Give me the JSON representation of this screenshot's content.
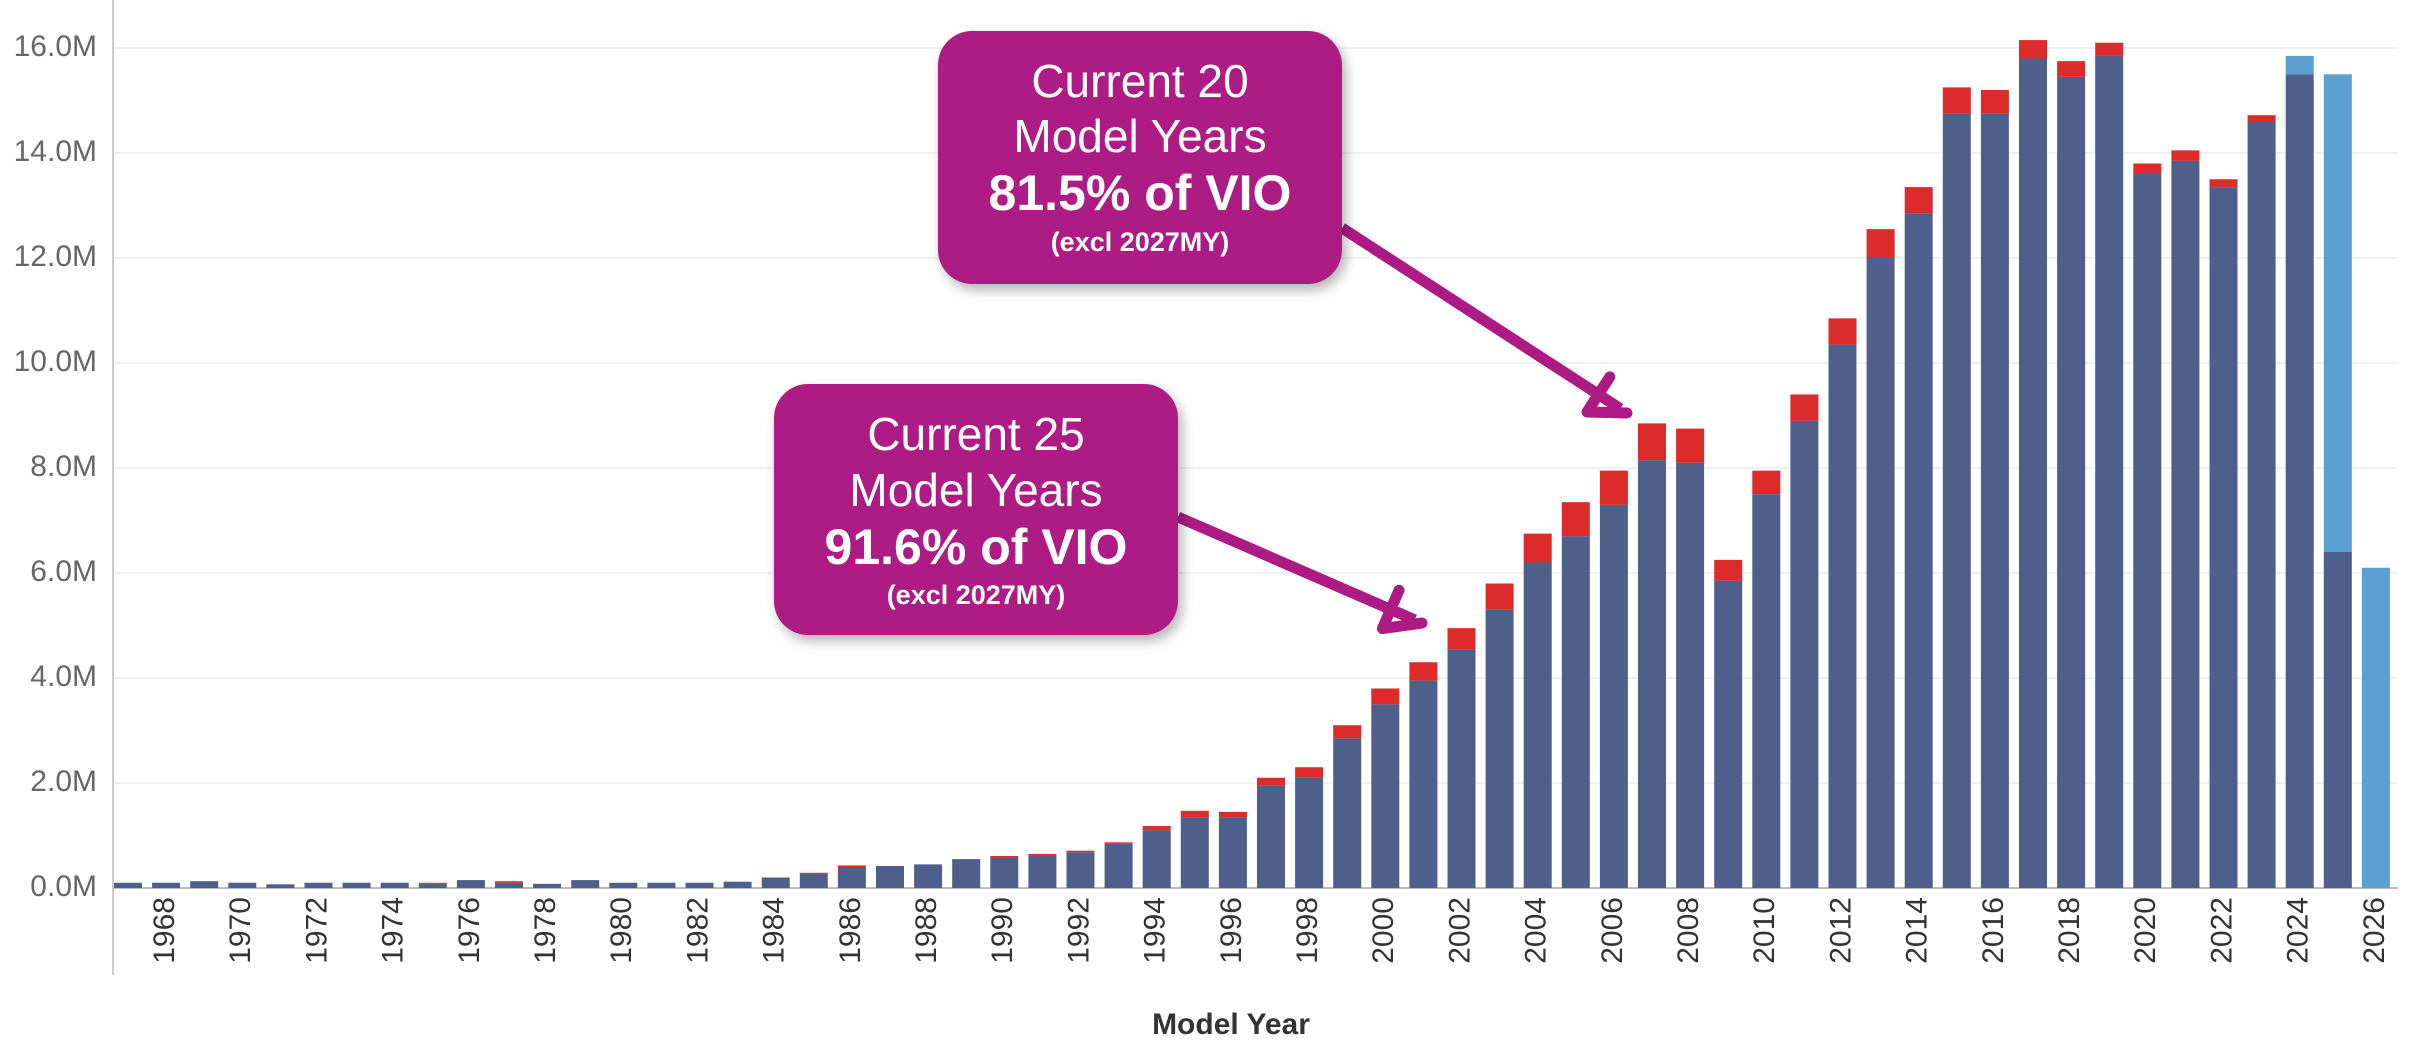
{
  "chart_data": {
    "type": "stacked_bar",
    "x_label": "Model Year",
    "categories": [
      null,
      "1968",
      null,
      "1970",
      null,
      "1972",
      null,
      "1974",
      null,
      "1976",
      null,
      "1978",
      null,
      "1980",
      null,
      "1982",
      null,
      "1984",
      null,
      "1986",
      null,
      "1988",
      null,
      "1990",
      null,
      "1992",
      null,
      "1994",
      null,
      "1996",
      null,
      "1998",
      null,
      "2000",
      null,
      "2002",
      null,
      "2004",
      null,
      "2006",
      null,
      "2008",
      null,
      "2010",
      null,
      "2012",
      null,
      "2014",
      null,
      "2016",
      null,
      "2018",
      null,
      "2020",
      null,
      "2022",
      null,
      "2024",
      null,
      "2026"
    ],
    "series": [
      {
        "color": "#4f5f8c",
        "values": [
          0.1,
          0.1,
          0.13,
          0.1,
          0.07,
          0.1,
          0.1,
          0.1,
          0.08,
          0.15,
          0.1,
          0.08,
          0.15,
          0.1,
          0.1,
          0.1,
          0.12,
          0.2,
          0.27,
          0.4,
          0.42,
          0.45,
          0.55,
          0.58,
          0.62,
          0.68,
          0.85,
          1.1,
          1.35,
          1.35,
          1.95,
          2.1,
          2.85,
          3.5,
          3.95,
          4.55,
          5.3,
          6.2,
          6.7,
          7.3,
          8.15,
          8.1,
          5.85,
          7.5,
          8.9,
          10.35,
          12.0,
          12.85,
          14.75,
          14.75,
          15.8,
          15.45,
          15.85,
          13.6,
          13.85,
          13.35,
          14.6,
          15.5,
          6.4,
          0
        ]
      },
      {
        "color": "#dd2a2a",
        "values": [
          0,
          0,
          0,
          0,
          0,
          0,
          0,
          0,
          0.02,
          0,
          0.03,
          0,
          0,
          0,
          0,
          0,
          0,
          0,
          0.02,
          0.03,
          0,
          0,
          0,
          0.03,
          0.03,
          0.03,
          0.02,
          0.08,
          0.12,
          0.1,
          0.15,
          0.2,
          0.25,
          0.3,
          0.35,
          0.4,
          0.5,
          0.55,
          0.65,
          0.65,
          0.7,
          0.65,
          0.4,
          0.45,
          0.5,
          0.5,
          0.55,
          0.5,
          0.5,
          0.45,
          0.35,
          0.3,
          0.25,
          0.2,
          0.2,
          0.15,
          0.12,
          0,
          0,
          0
        ]
      },
      {
        "color": "#5b9fd0",
        "values": [
          0,
          0,
          0,
          0,
          0,
          0,
          0,
          0,
          0,
          0,
          0,
          0,
          0,
          0,
          0,
          0,
          0,
          0,
          0,
          0,
          0,
          0,
          0,
          0,
          0,
          0,
          0,
          0,
          0,
          0,
          0,
          0,
          0,
          0,
          0,
          0,
          0,
          0,
          0,
          0,
          0,
          0,
          0,
          0,
          0,
          0,
          0,
          0,
          0,
          0,
          0,
          0,
          0,
          0,
          0,
          0,
          0,
          0.35,
          9.1,
          6.1
        ]
      }
    ],
    "ylim": [
      0,
      16.5
    ],
    "yticks": [
      {
        "value": 0,
        "label": "0.0M"
      },
      {
        "value": 2,
        "label": "2.0M"
      },
      {
        "value": 4,
        "label": "4.0M"
      },
      {
        "value": 6,
        "label": "6.0M"
      },
      {
        "value": 8,
        "label": "8.0M"
      },
      {
        "value": 10,
        "label": "10.0M"
      },
      {
        "value": 12,
        "label": "12.0M"
      },
      {
        "value": 14,
        "label": "14.0M"
      },
      {
        "value": 16,
        "label": "16.0M"
      }
    ],
    "grid": true,
    "annotations": [
      {
        "lines": [
          "Current 20",
          "Model Years",
          "81.5% of VIO",
          "(excl 2027MY)"
        ]
      },
      {
        "lines": [
          "Current 25",
          "Model Years",
          "91.6% of VIO",
          "(excl 2027MY)"
        ]
      }
    ]
  }
}
